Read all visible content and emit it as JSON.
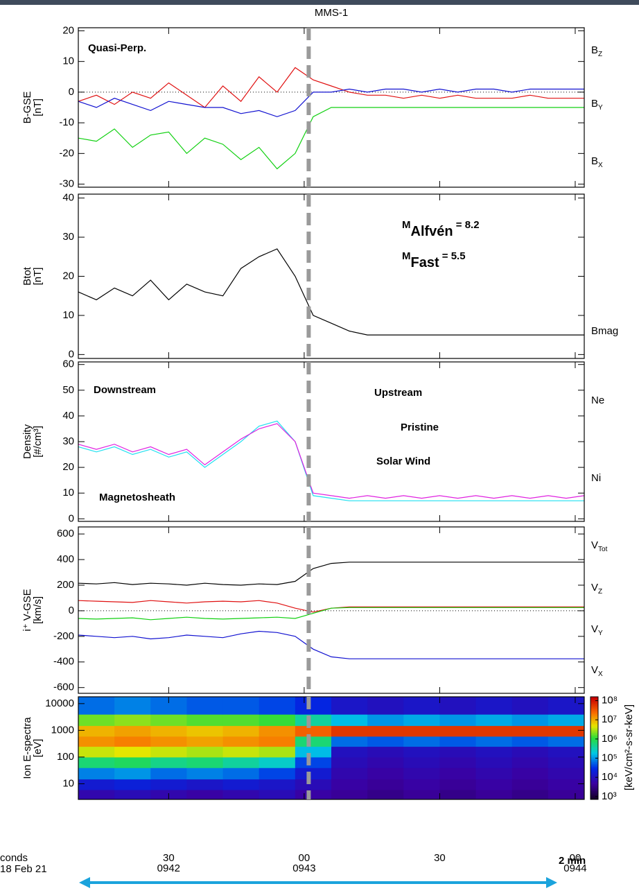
{
  "chart_data": [
    {
      "type": "line",
      "title": "MMS-1",
      "ylabel": [
        "B-GSE",
        "[nT]"
      ],
      "subscript_names": true,
      "zero_line": true,
      "vline": 61,
      "x": [
        10,
        14,
        18,
        22,
        26,
        30,
        34,
        38,
        42,
        46,
        50,
        54,
        58,
        62,
        66,
        70,
        74,
        78,
        82,
        86,
        90,
        94,
        98,
        102,
        106,
        110,
        114,
        118,
        122
      ],
      "xlim": [
        10,
        122
      ],
      "xticks": [
        30,
        60,
        90,
        120
      ],
      "ylim": [
        -31,
        21
      ],
      "yticks": [
        -30,
        -20,
        -10,
        0,
        10,
        20
      ],
      "series": [
        {
          "name": "BZ",
          "color": "#e01010",
          "values": [
            -3,
            -1,
            -4,
            0,
            -2,
            3,
            -1,
            -5,
            2,
            -3,
            5,
            0,
            8,
            4,
            2,
            0,
            -1,
            -1,
            -2,
            -1,
            -2,
            -1,
            -2,
            -2,
            -2,
            -1,
            -2,
            -2,
            -2
          ]
        },
        {
          "name": "BY",
          "color": "#10d010",
          "values": [
            -15,
            -16,
            -12,
            -18,
            -14,
            -13,
            -20,
            -15,
            -17,
            -22,
            -18,
            -25,
            -20,
            -8,
            -5,
            -5,
            -5,
            -5,
            -5,
            -5,
            -5,
            -5,
            -5,
            -5,
            -5,
            -5,
            -5,
            -5,
            -5
          ]
        },
        {
          "name": "BX",
          "color": "#1010d0",
          "values": [
            -3,
            -5,
            -2,
            -4,
            -6,
            -3,
            -4,
            -5,
            -5,
            -7,
            -6,
            -8,
            -6,
            0,
            0,
            1,
            0,
            1,
            1,
            0,
            1,
            0,
            1,
            1,
            0,
            1,
            1,
            1,
            1
          ]
        }
      ],
      "annotations": [
        "Quasi-Perp."
      ]
    },
    {
      "type": "line",
      "ylabel": [
        "Btot",
        "[nT]"
      ],
      "vline": 61,
      "x": [
        10,
        14,
        18,
        22,
        26,
        30,
        34,
        38,
        42,
        46,
        50,
        54,
        58,
        62,
        66,
        70,
        74,
        78,
        82,
        86,
        90,
        94,
        98,
        102,
        106,
        110,
        114,
        118,
        122
      ],
      "xlim": [
        10,
        122
      ],
      "xticks": [
        30,
        60,
        90,
        120
      ],
      "ylim": [
        -1,
        41
      ],
      "yticks": [
        0,
        10,
        20,
        30,
        40
      ],
      "series": [
        {
          "name": "Bmag",
          "color": "#000000",
          "values": [
            16,
            14,
            17,
            15,
            19,
            14,
            18,
            16,
            15,
            22,
            25,
            27,
            20,
            10,
            8,
            6,
            5,
            5,
            5,
            5,
            5,
            5,
            5,
            5,
            5,
            5,
            5,
            5,
            5
          ]
        }
      ],
      "subscripted_annotations": [
        [
          "M",
          "Alfvén",
          " = 8.2"
        ],
        [
          "M",
          "Fast",
          " = 5.5"
        ]
      ]
    },
    {
      "type": "line",
      "ylabel": [
        "Density",
        "[#/cm³]"
      ],
      "vline": 61,
      "x": [
        10,
        14,
        18,
        22,
        26,
        30,
        34,
        38,
        42,
        46,
        50,
        54,
        58,
        62,
        66,
        70,
        74,
        78,
        82,
        86,
        90,
        94,
        98,
        102,
        106,
        110,
        114,
        118,
        122
      ],
      "xlim": [
        10,
        122
      ],
      "xticks": [
        30,
        60,
        90,
        120
      ],
      "ylim": [
        -1,
        61
      ],
      "yticks": [
        0,
        10,
        20,
        30,
        40,
        50,
        60
      ],
      "series": [
        {
          "name": "Ne",
          "color": "#20e0f0",
          "values": [
            28,
            26,
            28,
            25,
            27,
            24,
            26,
            20,
            25,
            30,
            36,
            38,
            30,
            9,
            8,
            7,
            7,
            7,
            7,
            7,
            7,
            7,
            7,
            7,
            7,
            7,
            7,
            7,
            7
          ]
        },
        {
          "name": "Ni",
          "color": "#e020e0",
          "values": [
            29,
            27,
            29,
            26,
            28,
            25,
            27,
            21,
            26,
            31,
            35,
            37,
            30,
            10,
            9,
            8,
            9,
            8,
            9,
            8,
            9,
            8,
            9,
            8,
            9,
            8,
            9,
            8,
            9
          ]
        }
      ],
      "annotations": [
        "Downstream",
        "Upstream",
        "Pristine",
        "Solar Wind",
        "Magnetosheath"
      ]
    },
    {
      "type": "line",
      "ylabel": [
        "i⁺ V-GSE",
        "[km/s]"
      ],
      "subscript_names": true,
      "zero_line": true,
      "vline": 61,
      "x": [
        10,
        14,
        18,
        22,
        26,
        30,
        34,
        38,
        42,
        46,
        50,
        54,
        58,
        62,
        66,
        70,
        74,
        78,
        82,
        86,
        90,
        94,
        98,
        102,
        106,
        110,
        114,
        118,
        122
      ],
      "xlim": [
        10,
        122
      ],
      "xticks": [
        30,
        60,
        90,
        120
      ],
      "ylim": [
        -645,
        655
      ],
      "yticks": [
        -600,
        -400,
        -200,
        0,
        200,
        400,
        600
      ],
      "series": [
        {
          "name": "VTot",
          "color": "#000000",
          "values": [
            215,
            210,
            220,
            205,
            215,
            210,
            200,
            215,
            205,
            200,
            210,
            205,
            230,
            330,
            370,
            380,
            380,
            380,
            380,
            380,
            380,
            380,
            380,
            380,
            380,
            380,
            380,
            380,
            380
          ]
        },
        {
          "name": "VZ",
          "color": "#e01010",
          "values": [
            80,
            75,
            70,
            65,
            80,
            70,
            60,
            70,
            75,
            70,
            80,
            60,
            20,
            -10,
            20,
            30,
            30,
            30,
            30,
            30,
            30,
            30,
            30,
            30,
            30,
            30,
            30,
            30,
            30
          ]
        },
        {
          "name": "VY",
          "color": "#10d010",
          "values": [
            -60,
            -65,
            -60,
            -55,
            -70,
            -60,
            -50,
            -60,
            -65,
            -60,
            -55,
            -50,
            -60,
            -20,
            20,
            25,
            25,
            25,
            25,
            25,
            25,
            25,
            25,
            25,
            25,
            25,
            25,
            25,
            25
          ]
        },
        {
          "name": "VX",
          "color": "#1010d0",
          "values": [
            -190,
            -200,
            -210,
            -200,
            -220,
            -210,
            -190,
            -200,
            -210,
            -180,
            -160,
            -170,
            -200,
            -300,
            -360,
            -375,
            -375,
            -375,
            -375,
            -375,
            -375,
            -375,
            -375,
            -375,
            -375,
            -375,
            -375,
            -375,
            -375
          ]
        }
      ]
    },
    {
      "type": "heatmap",
      "ylabel": [
        "Ion E-spectra",
        "[eV]"
      ],
      "log_y": true,
      "vline": 61,
      "x_edges": [
        10,
        18,
        26,
        34,
        42,
        50,
        58,
        66,
        74,
        82,
        90,
        98,
        106,
        114,
        122
      ],
      "y_edges": [
        2.6,
        6,
        15,
        40,
        100,
        250,
        600,
        1500,
        4000,
        18000
      ],
      "z": [
        [
          3.8,
          3.9,
          3.8,
          3.7,
          3.8,
          3.9,
          3.7,
          3.6,
          3.5,
          3.6,
          3.5,
          3.6,
          3.5,
          3.6
        ],
        [
          4.2,
          4.3,
          4.2,
          4.1,
          4.2,
          4.1,
          3.9,
          3.7,
          3.6,
          3.7,
          3.6,
          3.7,
          3.6,
          3.7
        ],
        [
          4.9,
          5.0,
          4.8,
          4.9,
          4.8,
          4.6,
          4.2,
          3.8,
          3.7,
          3.8,
          3.7,
          3.8,
          3.7,
          3.8
        ],
        [
          5.8,
          5.9,
          5.7,
          5.8,
          5.6,
          5.4,
          4.6,
          3.9,
          3.8,
          3.9,
          3.8,
          3.9,
          3.8,
          3.9
        ],
        [
          6.6,
          6.7,
          6.6,
          6.5,
          6.6,
          6.5,
          5.2,
          4.0,
          3.9,
          4.0,
          3.9,
          4.0,
          3.9,
          4.0
        ],
        [
          7.2,
          7.3,
          7.2,
          7.1,
          7.2,
          7.3,
          5.8,
          4.8,
          4.7,
          4.8,
          4.7,
          4.8,
          4.7,
          4.8
        ],
        [
          7.0,
          7.1,
          7.0,
          6.9,
          7.0,
          7.2,
          7.5,
          7.8,
          7.8,
          7.8,
          7.8,
          7.8,
          7.8,
          7.8
        ],
        [
          6.3,
          6.4,
          6.3,
          6.2,
          6.2,
          6.1,
          5.6,
          5.2,
          5.0,
          5.1,
          5.0,
          5.1,
          5.0,
          5.1
        ],
        [
          4.8,
          4.9,
          4.8,
          4.7,
          4.7,
          4.6,
          4.4,
          4.1,
          4.0,
          4.1,
          4.0,
          4.1,
          4.0,
          4.1
        ]
      ],
      "xlim": [
        10,
        122
      ],
      "xticks": [
        {
          "value": 30,
          "label": "30\n0942"
        },
        {
          "value": 60,
          "label": "00\n0943"
        },
        {
          "value": 90,
          "label": "30"
        },
        {
          "value": 120,
          "label": "00\n0944"
        }
      ],
      "ylim": [
        2.6,
        18000
      ],
      "yticks": [
        10,
        100,
        1000,
        10000
      ],
      "zlim": [
        2.85,
        8.2
      ],
      "zticks": [
        {
          "value": 3,
          "label": "10³"
        },
        {
          "value": 4,
          "label": "10⁴"
        },
        {
          "value": 5,
          "label": "10⁵"
        },
        {
          "value": 6,
          "label": "10⁶"
        },
        {
          "value": 7,
          "label": "10⁷"
        },
        {
          "value": 8,
          "label": "10⁸"
        }
      ],
      "zlabel": "[keV/cm²-s-sr-keV]",
      "xlabel": [
        "conds",
        "18 Feb 21"
      ],
      "span_label": "2 min"
    }
  ]
}
